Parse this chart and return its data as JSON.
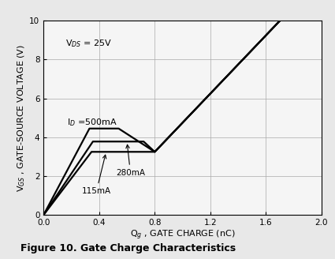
{
  "title": "Figure 10. Gate Charge Characteristics",
  "xlabel_part1": "Q",
  "xlabel_sub": "g",
  "xlabel_part2": " , GATE CHARGE (nC)",
  "ylabel": "V$_{GS}$ , GATE-SOURCE VOLTAGE (V)",
  "xlim": [
    0,
    2
  ],
  "ylim": [
    0,
    10
  ],
  "xticks": [
    0,
    0.4,
    0.8,
    1.2,
    1.6,
    2.0
  ],
  "yticks": [
    0,
    2,
    4,
    6,
    8,
    10
  ],
  "annotation_vds": "V$_{DS}$ = 25V",
  "annotation_id": "I$_D$ =500mA",
  "annotation_280": "280mA",
  "annotation_115": "115mA",
  "curve_500mA": {
    "x": [
      0.0,
      0.33,
      0.54,
      0.8,
      1.7
    ],
    "y": [
      0.0,
      4.45,
      4.45,
      3.25,
      10.0
    ]
  },
  "curve_280mA": {
    "x": [
      0.0,
      0.355,
      0.72,
      0.8,
      1.7
    ],
    "y": [
      0.0,
      3.78,
      3.78,
      3.25,
      10.0
    ]
  },
  "curve_115mA": {
    "x": [
      0.0,
      0.345,
      0.8,
      1.7
    ],
    "y": [
      0.0,
      3.25,
      3.25,
      10.0
    ]
  },
  "line_color": "#000000",
  "background_color": "#f5f5f5",
  "grid_color": "#aaaaaa"
}
